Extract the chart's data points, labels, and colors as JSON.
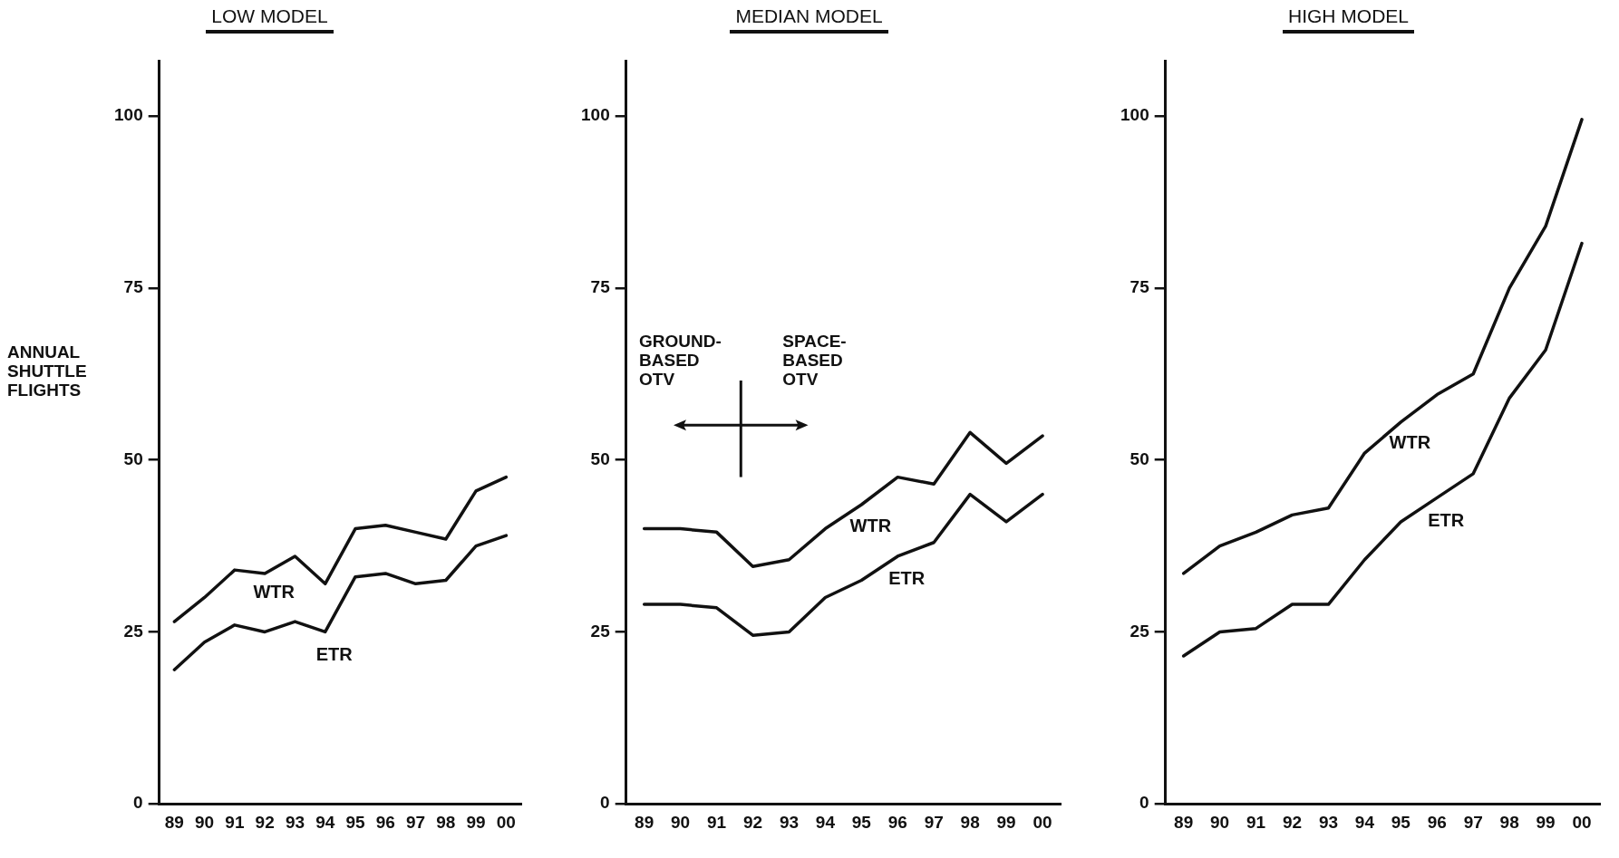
{
  "chart_data": [
    {
      "type": "line",
      "title": "LOW MODEL",
      "ylabel": "ANNUAL SHUTTLE FLIGHTS",
      "categories": [
        "89",
        "90",
        "91",
        "92",
        "93",
        "94",
        "95",
        "96",
        "97",
        "98",
        "99",
        "00"
      ],
      "ylim": [
        0,
        108
      ],
      "yticks": [
        0,
        25,
        50,
        75,
        100
      ],
      "grid": false,
      "legend": false,
      "marker": "none",
      "line_style": "solid",
      "series": [
        {
          "name": "WTR",
          "color": "#111111",
          "values": [
            26.5,
            30,
            34,
            33.5,
            36,
            32,
            40,
            40.5,
            39.5,
            38.5,
            45.5,
            47.5
          ]
        },
        {
          "name": "ETR",
          "color": "#111111",
          "values": [
            19.5,
            23.5,
            26,
            25,
            26.5,
            25,
            33,
            33.5,
            32,
            32.5,
            37.5,
            39
          ]
        }
      ]
    },
    {
      "type": "line",
      "title": "MEDIAN MODEL",
      "categories": [
        "89",
        "90",
        "91",
        "92",
        "93",
        "94",
        "95",
        "96",
        "97",
        "98",
        "99",
        "00"
      ],
      "ylim": [
        0,
        108
      ],
      "yticks": [
        0,
        25,
        50,
        75,
        100
      ],
      "grid": false,
      "legend": false,
      "marker": "none",
      "line_style": "solid",
      "annotations": [
        "GROUND-BASED OTV",
        "SPACE-BASED OTV"
      ],
      "series": [
        {
          "name": "WTR",
          "color": "#111111",
          "values": [
            40,
            40,
            39.5,
            34.5,
            35.5,
            40,
            43.5,
            47.5,
            46.5,
            54,
            49.5,
            53.5
          ]
        },
        {
          "name": "ETR",
          "color": "#111111",
          "values": [
            29,
            29,
            28.5,
            24.5,
            25,
            30,
            32.5,
            36,
            38,
            45,
            41,
            45
          ]
        }
      ]
    },
    {
      "type": "line",
      "title": "HIGH MODEL",
      "categories": [
        "89",
        "90",
        "91",
        "92",
        "93",
        "94",
        "95",
        "96",
        "97",
        "98",
        "99",
        "00"
      ],
      "ylim": [
        0,
        108
      ],
      "yticks": [
        0,
        25,
        50,
        75,
        100
      ],
      "grid": false,
      "legend": false,
      "marker": "none",
      "line_style": "solid",
      "series": [
        {
          "name": "WTR",
          "color": "#111111",
          "values": [
            33.5,
            37.5,
            39.5,
            42,
            43,
            51,
            55.5,
            59.5,
            62.5,
            75,
            84,
            99.5
          ]
        },
        {
          "name": "ETR",
          "color": "#111111",
          "values": [
            21.5,
            25,
            25.5,
            29,
            29,
            35.5,
            41,
            44.5,
            48,
            59,
            66,
            81.5
          ]
        }
      ]
    }
  ]
}
